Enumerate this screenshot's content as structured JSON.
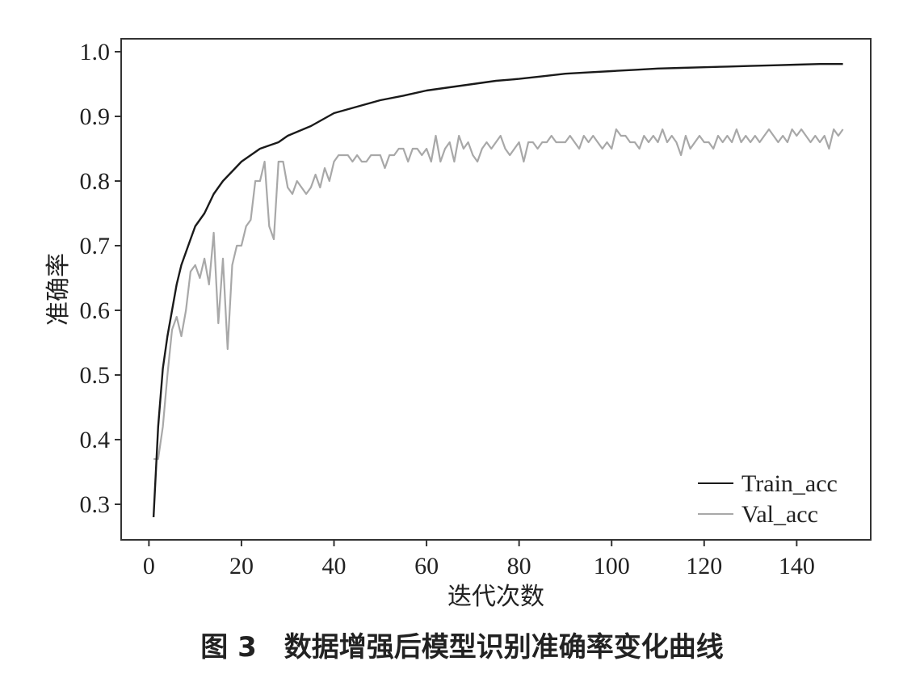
{
  "caption": "图 3　数据增强后模型识别准确率变化曲线",
  "chart_data": {
    "type": "line",
    "xlabel": "迭代次数",
    "ylabel": "准确率",
    "xlim": [
      -6,
      156
    ],
    "ylim": [
      0.245,
      1.02
    ],
    "xticks": [
      0,
      20,
      40,
      60,
      80,
      100,
      120,
      140
    ],
    "yticks": [
      0.3,
      0.4,
      0.5,
      0.6,
      0.7,
      0.8,
      0.9,
      1.0
    ],
    "ytick_labels": [
      "0.3",
      "0.4",
      "0.5",
      "0.6",
      "0.7",
      "0.8",
      "0.9",
      "1.0"
    ],
    "grid": false,
    "legend_position": "bottom-right",
    "series": [
      {
        "name": "Train_acc",
        "color": "#1a1a1a",
        "x": [
          1,
          2,
          3,
          4,
          5,
          6,
          7,
          8,
          9,
          10,
          12,
          14,
          16,
          18,
          20,
          22,
          24,
          26,
          28,
          30,
          35,
          40,
          45,
          50,
          55,
          60,
          65,
          70,
          75,
          80,
          85,
          90,
          95,
          100,
          105,
          110,
          115,
          120,
          125,
          130,
          135,
          140,
          145,
          150
        ],
        "y": [
          0.28,
          0.42,
          0.51,
          0.56,
          0.6,
          0.64,
          0.67,
          0.69,
          0.71,
          0.73,
          0.75,
          0.78,
          0.8,
          0.815,
          0.83,
          0.84,
          0.85,
          0.855,
          0.86,
          0.87,
          0.885,
          0.905,
          0.915,
          0.925,
          0.932,
          0.94,
          0.945,
          0.95,
          0.955,
          0.958,
          0.962,
          0.966,
          0.968,
          0.97,
          0.972,
          0.974,
          0.975,
          0.976,
          0.977,
          0.978,
          0.979,
          0.98,
          0.981,
          0.981
        ]
      },
      {
        "name": "Val_acc",
        "color": "#a8a8a8",
        "x": [
          1,
          2,
          3,
          4,
          5,
          6,
          7,
          8,
          9,
          10,
          11,
          12,
          13,
          14,
          15,
          16,
          17,
          18,
          19,
          20,
          21,
          22,
          23,
          24,
          25,
          26,
          27,
          28,
          29,
          30,
          31,
          32,
          33,
          34,
          35,
          36,
          37,
          38,
          39,
          40,
          41,
          42,
          43,
          44,
          45,
          46,
          47,
          48,
          49,
          50,
          51,
          52,
          53,
          54,
          55,
          56,
          57,
          58,
          59,
          60,
          61,
          62,
          63,
          64,
          65,
          66,
          67,
          68,
          69,
          70,
          71,
          72,
          73,
          74,
          75,
          76,
          77,
          78,
          79,
          80,
          81,
          82,
          83,
          84,
          85,
          86,
          87,
          88,
          89,
          90,
          91,
          92,
          93,
          94,
          95,
          96,
          97,
          98,
          99,
          100,
          101,
          102,
          103,
          104,
          105,
          106,
          107,
          108,
          109,
          110,
          111,
          112,
          113,
          114,
          115,
          116,
          117,
          118,
          119,
          120,
          121,
          122,
          123,
          124,
          125,
          126,
          127,
          128,
          129,
          130,
          131,
          132,
          133,
          134,
          135,
          136,
          137,
          138,
          139,
          140,
          141,
          142,
          143,
          144,
          145,
          146,
          147,
          148,
          149,
          150
        ],
        "y": [
          0.37,
          0.37,
          0.42,
          0.5,
          0.57,
          0.59,
          0.56,
          0.6,
          0.66,
          0.67,
          0.65,
          0.68,
          0.64,
          0.72,
          0.58,
          0.68,
          0.54,
          0.67,
          0.7,
          0.7,
          0.73,
          0.74,
          0.8,
          0.8,
          0.83,
          0.73,
          0.71,
          0.83,
          0.83,
          0.79,
          0.78,
          0.8,
          0.79,
          0.78,
          0.79,
          0.81,
          0.79,
          0.82,
          0.8,
          0.83,
          0.84,
          0.84,
          0.84,
          0.83,
          0.84,
          0.83,
          0.83,
          0.84,
          0.84,
          0.84,
          0.82,
          0.84,
          0.84,
          0.85,
          0.85,
          0.83,
          0.85,
          0.85,
          0.84,
          0.85,
          0.83,
          0.87,
          0.83,
          0.85,
          0.86,
          0.83,
          0.87,
          0.85,
          0.86,
          0.84,
          0.83,
          0.85,
          0.86,
          0.85,
          0.86,
          0.87,
          0.85,
          0.84,
          0.85,
          0.86,
          0.83,
          0.86,
          0.86,
          0.85,
          0.86,
          0.86,
          0.87,
          0.86,
          0.86,
          0.86,
          0.87,
          0.86,
          0.85,
          0.87,
          0.86,
          0.87,
          0.86,
          0.85,
          0.86,
          0.85,
          0.88,
          0.87,
          0.87,
          0.86,
          0.86,
          0.85,
          0.87,
          0.86,
          0.87,
          0.86,
          0.88,
          0.86,
          0.87,
          0.86,
          0.84,
          0.87,
          0.85,
          0.86,
          0.87,
          0.86,
          0.86,
          0.85,
          0.87,
          0.86,
          0.87,
          0.86,
          0.88,
          0.86,
          0.87,
          0.86,
          0.87,
          0.86,
          0.87,
          0.88,
          0.87,
          0.86,
          0.87,
          0.86,
          0.88,
          0.87,
          0.88,
          0.87,
          0.86,
          0.87,
          0.86,
          0.87,
          0.85,
          0.88,
          0.87,
          0.88
        ]
      }
    ]
  }
}
